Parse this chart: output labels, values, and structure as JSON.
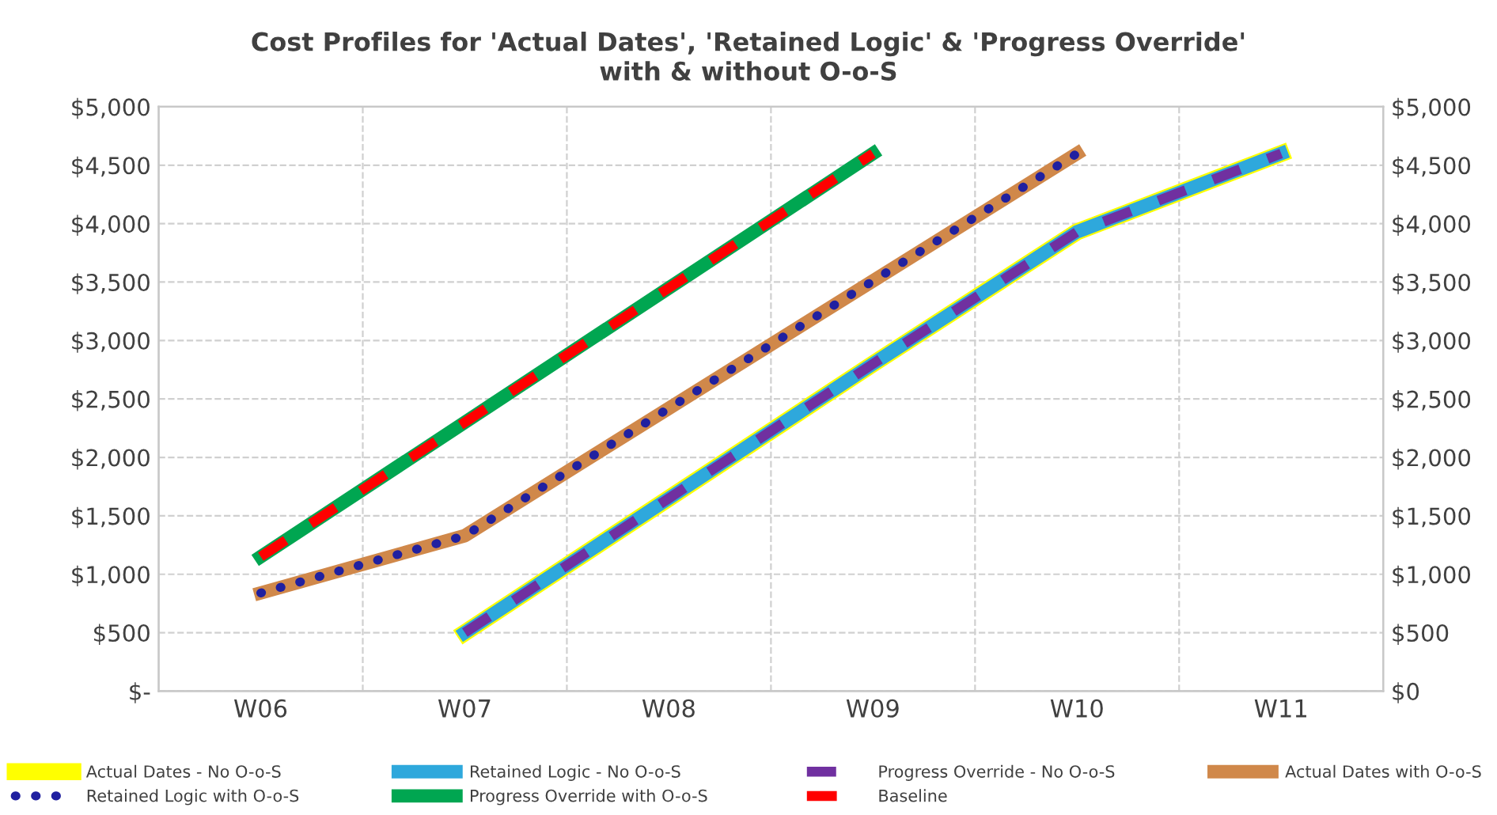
{
  "chart_data": {
    "type": "line",
    "title": "Cost Profiles for 'Actual Dates', 'Retained Logic' & 'Progress Override'\nwith & without O-o-S",
    "categories": [
      "W06",
      "W07",
      "W08",
      "W09",
      "W10",
      "W11"
    ],
    "series": [
      {
        "name": "Actual Dates - No O-o-S",
        "color": "#ffff00",
        "line_style": "solid",
        "values": [
          null,
          500,
          1650,
          2800,
          3930,
          4600
        ]
      },
      {
        "name": "Retained Logic - No O-o-S",
        "color": "#2ea8dc",
        "line_style": "solid",
        "values": [
          null,
          500,
          1650,
          2800,
          3930,
          4600
        ]
      },
      {
        "name": "Progress Override - No O-o-S",
        "color": "#7030a0",
        "line_style": "dashed",
        "values": [
          null,
          500,
          1650,
          2800,
          3930,
          4600
        ]
      },
      {
        "name": "Actual Dates with O-o-S",
        "color": "#d0884a",
        "line_style": "solid",
        "values": [
          840,
          1330,
          2420,
          3510,
          4600,
          null
        ]
      },
      {
        "name": "Retained Logic with O-o-S",
        "color": "#2020a0",
        "line_style": "dotted",
        "values": [
          840,
          1330,
          2420,
          3510,
          4600,
          null
        ]
      },
      {
        "name": "Progress Override with O-o-S",
        "color": "#00a651",
        "line_style": "solid",
        "values": [
          1150,
          2300,
          3450,
          4600,
          null,
          null
        ]
      },
      {
        "name": "Baseline",
        "color": "#ff0000",
        "line_style": "dashed",
        "values": [
          1150,
          2300,
          3450,
          4600,
          null,
          null
        ]
      }
    ],
    "ylim": [
      0,
      5000
    ],
    "yticks": [
      {
        "value": 0,
        "label": "$-"
      },
      {
        "value": 500,
        "label": "$500"
      },
      {
        "value": 1000,
        "label": "$1,000"
      },
      {
        "value": 1500,
        "label": "$1,500"
      },
      {
        "value": 2000,
        "label": "$2,000"
      },
      {
        "value": 2500,
        "label": "$2,500"
      },
      {
        "value": 3000,
        "label": "$3,000"
      },
      {
        "value": 3500,
        "label": "$3,500"
      },
      {
        "value": 4000,
        "label": "$4,000"
      },
      {
        "value": 4500,
        "label": "$4,500"
      },
      {
        "value": 5000,
        "label": "$5,000"
      }
    ],
    "y2lim": [
      0,
      5000
    ],
    "y2ticks": [
      {
        "value": 0,
        "label": "$0"
      },
      {
        "value": 500,
        "label": "$500"
      },
      {
        "value": 1000,
        "label": "$1,000"
      },
      {
        "value": 1500,
        "label": "$1,500"
      },
      {
        "value": 2000,
        "label": "$2,000"
      },
      {
        "value": 2500,
        "label": "$2,500"
      },
      {
        "value": 3000,
        "label": "$3,000"
      },
      {
        "value": 3500,
        "label": "$3,500"
      },
      {
        "value": 4000,
        "label": "$4,000"
      },
      {
        "value": 4500,
        "label": "$4,500"
      },
      {
        "value": 5000,
        "label": "$5,000"
      }
    ],
    "grid": true,
    "legend": "bottom",
    "marker": "none"
  }
}
